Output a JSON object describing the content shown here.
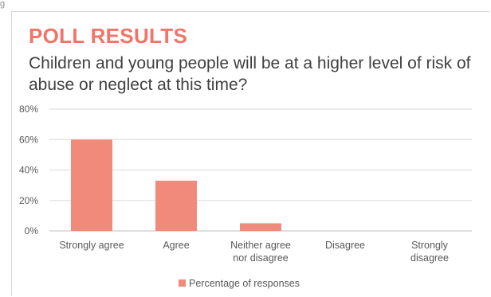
{
  "chart_data": {
    "type": "bar",
    "title": "POLL RESULTS",
    "subtitle": "Children and young people will be at a higher level of risk of abuse or neglect at this time?",
    "categories": [
      [
        "Strongly agree"
      ],
      [
        "Agree"
      ],
      [
        "Neither agree",
        "nor disagree"
      ],
      [
        "Disagree"
      ],
      [
        "Strongly",
        "disagree"
      ]
    ],
    "series": [
      {
        "name": "Percentage of responses",
        "values": [
          60,
          33,
          5,
          0,
          0
        ],
        "color": "#f28a7c"
      }
    ],
    "yticks": [
      "0%",
      "20%",
      "40%",
      "60%",
      "80%"
    ],
    "ylim": [
      0,
      80
    ],
    "grid": true,
    "legend": "bottom"
  }
}
